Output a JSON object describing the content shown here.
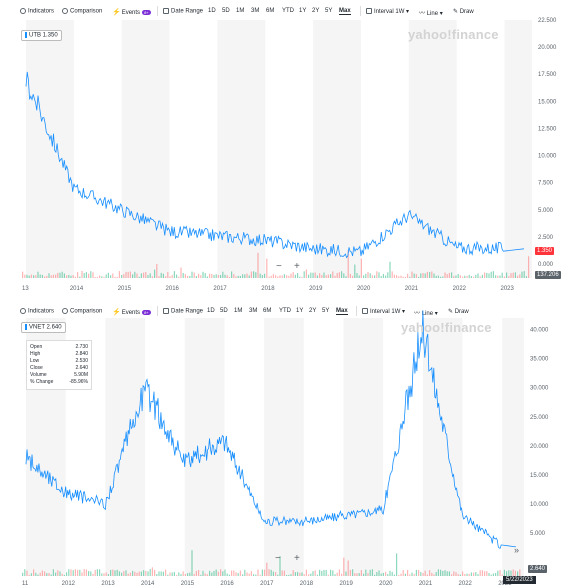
{
  "toolbar": {
    "indicators": "Indicators",
    "comparison": "Comparison",
    "events": "Events",
    "events_badge": "8+",
    "date_range": "Date Range",
    "ranges": [
      "1D",
      "5D",
      "1M",
      "3M",
      "6M",
      "YTD",
      "1Y",
      "2Y",
      "5Y",
      "Max"
    ],
    "selected_range": "Max",
    "interval": "Interval",
    "interval_value": "1W",
    "line": "Line",
    "draw": "Draw"
  },
  "logo": "yahoo!finance",
  "charts": [
    {
      "ticker_label": "UTB 1.350",
      "price_label": "1.350",
      "volume_label": "137.206",
      "zoom_minus": "−",
      "zoom_plus": "+"
    },
    {
      "ticker_label": "VNET 2.640",
      "price_label": "2.640",
      "date_label": "5/22/2023",
      "zoom_minus": "−",
      "zoom_plus": "+",
      "expand": "»",
      "info": [
        {
          "k": "Open",
          "v": "2.730"
        },
        {
          "k": "High",
          "v": "2.840"
        },
        {
          "k": "Low",
          "v": "2.530"
        },
        {
          "k": "Close",
          "v": "2.640"
        },
        {
          "k": "Volume",
          "v": "5.90M"
        },
        {
          "k": "% Change",
          "v": "-85.96%"
        }
      ]
    }
  ],
  "chart_data": [
    {
      "type": "line",
      "title": "",
      "series": [
        {
          "name": "UTB",
          "x": [
            "2013",
            "2014",
            "2015",
            "2016",
            "2017",
            "2018",
            "2019",
            "2020",
            "2021",
            "2022",
            "2023"
          ],
          "values": [
            17,
            7,
            5,
            3,
            2.6,
            2.2,
            1.4,
            1.1,
            4.5,
            1.5,
            1.4
          ]
        }
      ],
      "xlabel": "",
      "ylabel": "",
      "x_ticks": [
        "13",
        "2014",
        "2015",
        "2016",
        "2017",
        "2018",
        "2019",
        "2020",
        "2021",
        "2022",
        "2023"
      ],
      "y_ticks": [
        "22.500",
        "20.000",
        "17.500",
        "15.000",
        "12.500",
        "10.000",
        "7.500",
        "5.000",
        "2.500",
        "0.000"
      ],
      "ylim": [
        0,
        22.5
      ]
    },
    {
      "type": "line",
      "title": "",
      "series": [
        {
          "name": "VNET",
          "x": [
            "2011",
            "2012",
            "2013",
            "2014",
            "2015",
            "2016",
            "2017",
            "2018",
            "2019",
            "2020",
            "2021",
            "2022",
            "2023"
          ],
          "values": [
            18,
            12,
            10,
            30,
            17,
            21,
            7,
            7,
            8,
            9,
            40,
            8,
            2.6
          ]
        }
      ],
      "xlabel": "",
      "ylabel": "",
      "x_ticks": [
        "11",
        "2012",
        "2013",
        "2014",
        "2015",
        "2016",
        "2017",
        "2018",
        "2019",
        "2020",
        "2021",
        "2022",
        "2023"
      ],
      "y_ticks": [
        "40.000",
        "35.000",
        "30.000",
        "25.000",
        "20.000",
        "15.000",
        "10.000",
        "5.000"
      ],
      "ylim": [
        0,
        42
      ]
    }
  ],
  "colors": {
    "line": "#188fff",
    "accent": "#ff333a",
    "volume_up": "#00a86b",
    "volume_down": "#ff5b5b",
    "band": "#f5f5f5"
  }
}
